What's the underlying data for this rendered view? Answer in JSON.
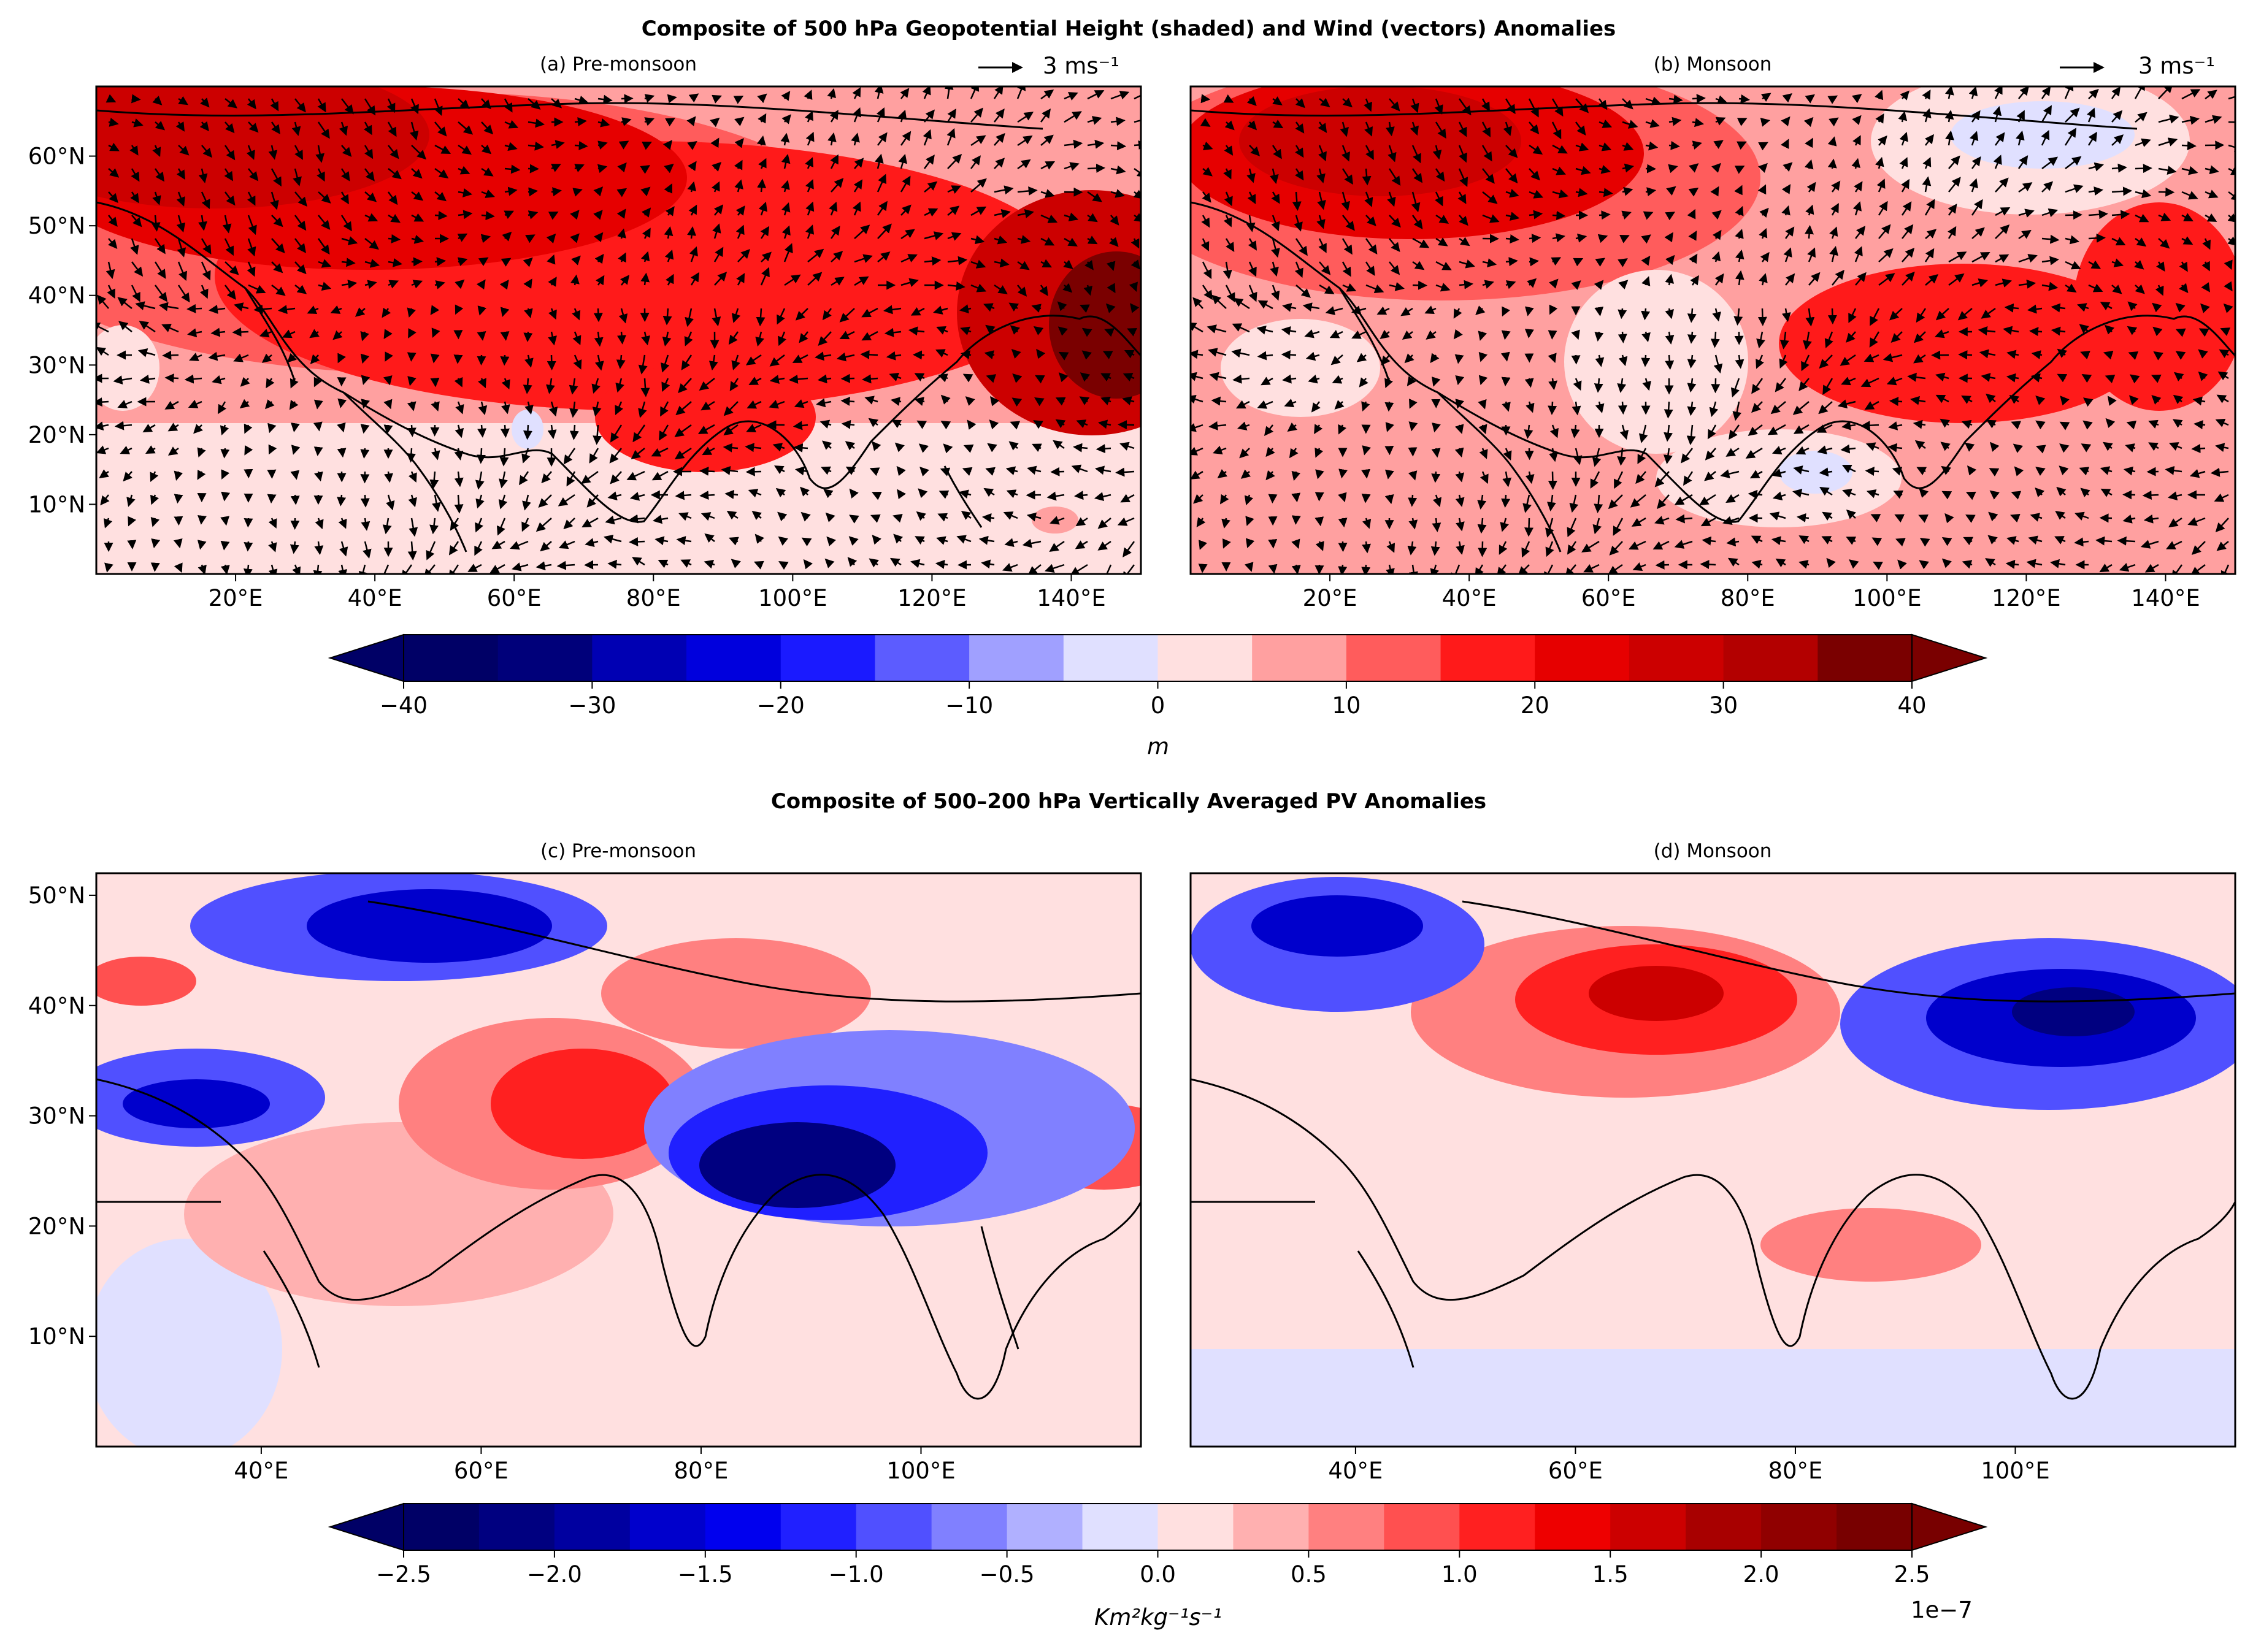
{
  "figure": {
    "top_title": "Composite of 500 hPa Geopotential Height (shaded) and Wind (vectors) Anomalies",
    "bottom_title": "Composite of 500–200 hPa Vertically Averaged PV Anomalies"
  },
  "panels": [
    {
      "id": "a",
      "title": "(a) Pre-monsoon",
      "quiver_key": "3 ms⁻¹",
      "field": "geopotential_height_anomaly",
      "wind_vectors": true,
      "extent": {
        "lon": [
          0,
          150
        ],
        "lat": [
          0,
          70
        ]
      },
      "lon_ticks": [
        "20°E",
        "40°E",
        "60°E",
        "80°E",
        "100°E",
        "120°E",
        "140°E"
      ],
      "lat_ticks": [
        "10°N",
        "20°N",
        "30°N",
        "40°N",
        "50°N",
        "60°N"
      ]
    },
    {
      "id": "b",
      "title": "(b) Monsoon",
      "quiver_key": "3 ms⁻¹",
      "field": "geopotential_height_anomaly",
      "wind_vectors": true,
      "extent": {
        "lon": [
          0,
          150
        ],
        "lat": [
          0,
          70
        ]
      },
      "lon_ticks": [
        "20°E",
        "40°E",
        "60°E",
        "80°E",
        "100°E",
        "120°E",
        "140°E"
      ],
      "lat_ticks": []
    },
    {
      "id": "c",
      "title": "(c) Pre-monsoon",
      "field": "pv_anomaly",
      "extent": {
        "lon": [
          25,
          120
        ],
        "lat": [
          0,
          52
        ]
      },
      "lon_ticks": [
        "40°E",
        "60°E",
        "80°E",
        "100°E"
      ],
      "lat_ticks": [
        "10°N",
        "20°N",
        "30°N",
        "40°N",
        "50°N"
      ]
    },
    {
      "id": "d",
      "title": "(d) Monsoon",
      "field": "pv_anomaly",
      "extent": {
        "lon": [
          25,
          120
        ],
        "lat": [
          0,
          52
        ]
      },
      "lon_ticks": [
        "40°E",
        "60°E",
        "80°E",
        "100°E"
      ],
      "lat_ticks": []
    }
  ],
  "colorbars": [
    {
      "id": "gph",
      "levels": [
        -40,
        -35,
        -30,
        -25,
        -20,
        -15,
        -10,
        -5,
        0,
        5,
        10,
        15,
        20,
        25,
        30,
        35,
        40
      ],
      "tick_labels": [
        "−40",
        "−30",
        "−20",
        "−10",
        "0",
        "10",
        "20",
        "30",
        "40"
      ],
      "tick_values": [
        -40,
        -30,
        -20,
        -10,
        0,
        10,
        20,
        30,
        40
      ],
      "label": "m",
      "extend": "both"
    },
    {
      "id": "pv",
      "levels": [
        -2.5,
        -2.25,
        -2.0,
        -1.75,
        -1.5,
        -1.25,
        -1.0,
        -0.75,
        -0.5,
        -0.25,
        0,
        0.25,
        0.5,
        0.75,
        1.0,
        1.25,
        1.5,
        1.75,
        2.0,
        2.25,
        2.5
      ],
      "tick_labels": [
        "−2.5",
        "−2.0",
        "−1.5",
        "−1.0",
        "−0.5",
        "0.0",
        "0.5",
        "1.0",
        "1.5",
        "2.0",
        "2.5"
      ],
      "tick_values": [
        -2.5,
        -2.0,
        -1.5,
        -1.0,
        -0.5,
        0,
        0.5,
        1.0,
        1.5,
        2.0,
        2.5
      ],
      "label": "Km²kg⁻¹s⁻¹",
      "exponent": "1e−7",
      "extend": "both"
    }
  ],
  "colors": {
    "gph_negative": [
      "#000066",
      "#00007a",
      "#0000b3",
      "#0000dd",
      "#1a1aff",
      "#5c5cff",
      "#a0a0ff",
      "#e0e0ff"
    ],
    "gph_positive": [
      "#ffe0e0",
      "#ffa0a0",
      "#ff5c5c",
      "#ff1a1a",
      "#e60000",
      "#cc0000",
      "#b30000",
      "#7a0000"
    ],
    "pv_negative": [
      "#000066",
      "#000080",
      "#0000a0",
      "#0000cc",
      "#0000ee",
      "#2020ff",
      "#5050ff",
      "#8080ff",
      "#b0b0ff",
      "#e0e0ff"
    ],
    "pv_positive": [
      "#ffe0e0",
      "#ffb0b0",
      "#ff8080",
      "#ff5050",
      "#ff2020",
      "#ee0000",
      "#cc0000",
      "#a80000",
      "#900000",
      "#780000"
    ]
  }
}
